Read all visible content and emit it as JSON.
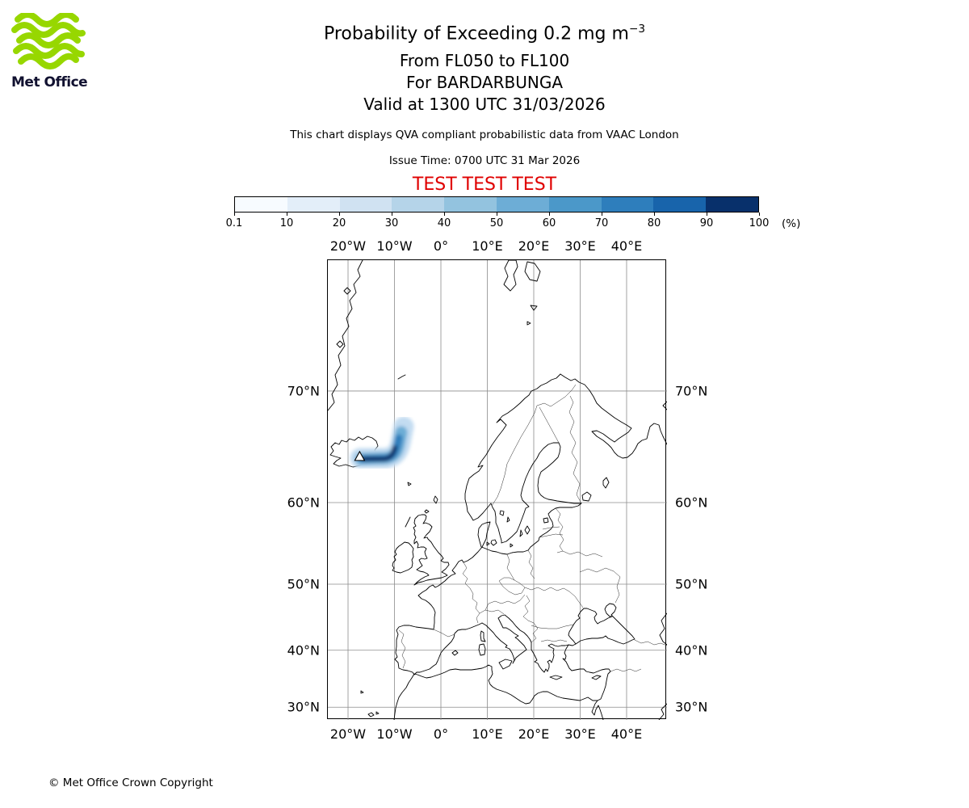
{
  "header": {
    "logo_text": "Met Office",
    "title_main": "Probability of Exceeding 0.2 mg m",
    "title_exponent": "−3",
    "subtitle_flight_levels": "From FL050 to FL100",
    "subtitle_volcano": "For BARDARBUNGA",
    "subtitle_valid": "Valid at 1300 UTC 31/03/2026",
    "description": "This chart displays QVA compliant probabilistic data from VAAC London",
    "issue_time": "Issue Time: 0700 UTC 31 Mar 2026",
    "test_banner": "TEST TEST TEST"
  },
  "footer": {
    "copyright": "© Met Office Crown Copyright"
  },
  "chart_data": {
    "type": "heatmap",
    "title": "Probability of Exceeding 0.2 mg m−3",
    "threshold": "0.2 mg m−3",
    "layer": "FL050 to FL100",
    "volcano": "BARDARBUNGA",
    "valid_time": "1300 UTC 31/03/2026",
    "issue_time": "0700 UTC 31 Mar 2026",
    "source": "VAAC London",
    "legend_unit": "(%)",
    "colorbar": {
      "labels": [
        "0.1",
        "10",
        "20",
        "30",
        "40",
        "50",
        "60",
        "70",
        "80",
        "90",
        "100"
      ],
      "colors": [
        "#f7fbff",
        "#e3eef9",
        "#d0e2f2",
        "#b5d4e9",
        "#93c3df",
        "#6dadd6",
        "#4b98c9",
        "#2e7ebc",
        "#1864ab",
        "#08306b"
      ]
    },
    "projection": {
      "name": "mercator",
      "lon_min": -24.35,
      "lon_max": 48.7,
      "lat_min": 27.6,
      "lat_max": 77.68
    },
    "lon_ticks": [
      {
        "value": -20,
        "label": "20°W"
      },
      {
        "value": -10,
        "label": "10°W"
      },
      {
        "value": 0,
        "label": "0°"
      },
      {
        "value": 10,
        "label": "10°E"
      },
      {
        "value": 20,
        "label": "20°E"
      },
      {
        "value": 30,
        "label": "30°E"
      },
      {
        "value": 40,
        "label": "40°E"
      }
    ],
    "lat_ticks": [
      {
        "value": 70,
        "label": "70°N"
      },
      {
        "value": 60,
        "label": "60°N"
      },
      {
        "value": 50,
        "label": "50°N"
      },
      {
        "value": 40,
        "label": "40°N"
      },
      {
        "value": 30,
        "label": "30°N"
      }
    ],
    "volcano_marker": {
      "lon": -17.5,
      "lat": 64.6,
      "symbol": "triangle"
    },
    "plume": {
      "description": "High-probability ash plume over eastern Iceland extending east from the volcano and hooking north-east over the Norwegian Sea",
      "lon_range": [
        -19,
        -11.5
      ],
      "lat_range": [
        63.3,
        67.2
      ],
      "max_percent": 100
    }
  }
}
